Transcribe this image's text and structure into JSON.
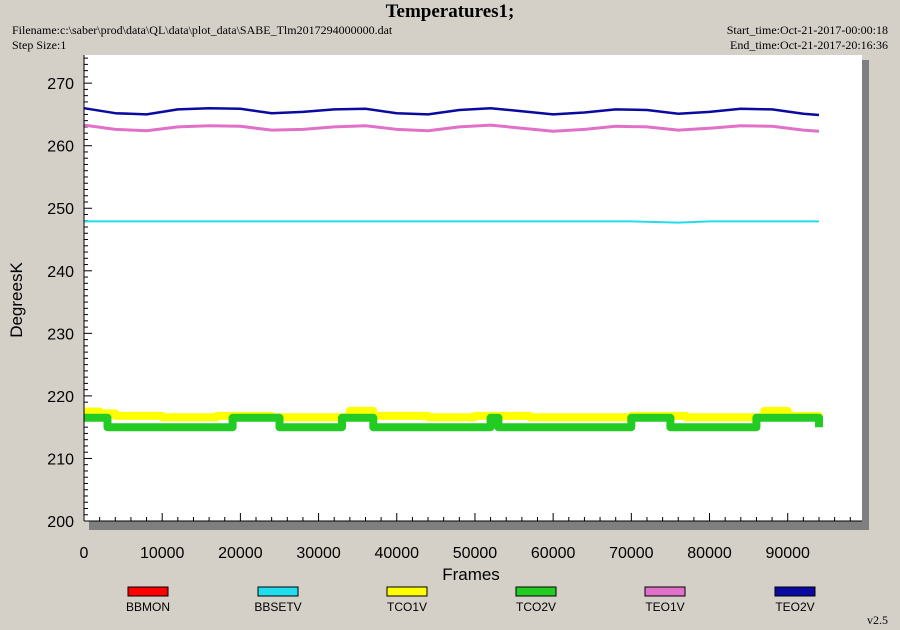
{
  "header": {
    "title": "Temperatures1;",
    "filename": "Filename:c:\\saber\\prod\\data\\QL\\data\\plot_data\\SABE_Tlm2017294000000.dat",
    "step_size": "Step Size:1",
    "start_time": "Start_time:Oct-21-2017-00:00:18",
    "end_time": "End_time:Oct-21-2017-20:16:36"
  },
  "version": "v2.5",
  "colors": {
    "background": "#d4d0c8",
    "plot_background": "#ffffff"
  },
  "chart_data": {
    "type": "line",
    "title": "Temperatures1;",
    "xlabel": "Frames",
    "ylabel": "DegreesK",
    "xlim": [
      0,
      100000
    ],
    "ylim": [
      200,
      275
    ],
    "x_ticks": [
      0,
      10000,
      20000,
      30000,
      40000,
      50000,
      60000,
      70000,
      80000,
      90000
    ],
    "y_ticks": [
      200,
      210,
      220,
      230,
      240,
      250,
      260,
      270
    ],
    "legend_position": "bottom",
    "series": [
      {
        "name": "BBMON",
        "color": "#ff0000",
        "x": [],
        "y": []
      },
      {
        "name": "BBSETV",
        "color": "#22ddee",
        "x": [
          0,
          10000,
          20000,
          30000,
          40000,
          50000,
          60000,
          70000,
          76000,
          80000,
          90000,
          94000
        ],
        "y": [
          247.9,
          247.9,
          247.9,
          247.9,
          247.9,
          247.9,
          247.9,
          247.9,
          247.7,
          247.9,
          247.9,
          247.9
        ]
      },
      {
        "name": "TCO1V",
        "color": "#ffff00",
        "x": [
          0,
          2000,
          4000,
          10000,
          17000,
          24000,
          30000,
          34000,
          37000,
          44000,
          50000,
          57000,
          64000,
          70000,
          77000,
          84000,
          87000,
          90000,
          94000
        ],
        "y": [
          217.5,
          217.2,
          216.8,
          216.6,
          216.8,
          216.6,
          216.6,
          217.6,
          216.8,
          216.6,
          216.8,
          216.6,
          216.6,
          216.8,
          216.6,
          216.6,
          217.6,
          216.8,
          216.6
        ]
      },
      {
        "name": "TCO2V",
        "color": "#22cc22",
        "x": [
          0,
          2500,
          3000,
          10000,
          15000,
          19000,
          20000,
          25000,
          30000,
          33000,
          37000,
          44000,
          48000,
          52000,
          53000,
          60000,
          66000,
          70000,
          75000,
          80000,
          84000,
          86000,
          90000,
          94000
        ],
        "y": [
          216.5,
          216.5,
          215.0,
          215.0,
          215.0,
          216.5,
          216.5,
          215.0,
          215.0,
          216.5,
          215.0,
          215.0,
          215.0,
          216.5,
          215.0,
          215.0,
          215.0,
          216.5,
          215.0,
          215.0,
          215.0,
          216.5,
          216.5,
          215.0
        ]
      },
      {
        "name": "TEO1V",
        "color": "#e070c8",
        "x": [
          0,
          4000,
          8000,
          12000,
          16000,
          20000,
          24000,
          28000,
          32000,
          36000,
          40000,
          44000,
          48000,
          52000,
          56000,
          60000,
          64000,
          68000,
          72000,
          76000,
          80000,
          84000,
          88000,
          92000,
          94000
        ],
        "y": [
          263.3,
          262.6,
          262.4,
          263.0,
          263.2,
          263.1,
          262.5,
          262.6,
          263.0,
          263.2,
          262.6,
          262.4,
          263.0,
          263.3,
          262.8,
          262.3,
          262.6,
          263.1,
          263.0,
          262.5,
          262.8,
          263.2,
          263.1,
          262.5,
          262.3
        ]
      },
      {
        "name": "TEO2V",
        "color": "#0a0aa0",
        "x": [
          0,
          4000,
          8000,
          12000,
          16000,
          20000,
          24000,
          28000,
          32000,
          36000,
          40000,
          44000,
          48000,
          52000,
          56000,
          60000,
          64000,
          68000,
          72000,
          76000,
          80000,
          84000,
          88000,
          92000,
          94000
        ],
        "y": [
          266.0,
          265.2,
          265.0,
          265.8,
          266.0,
          265.9,
          265.2,
          265.4,
          265.8,
          265.9,
          265.2,
          265.0,
          265.7,
          266.0,
          265.5,
          265.0,
          265.3,
          265.8,
          265.7,
          265.1,
          265.4,
          265.9,
          265.8,
          265.1,
          264.9
        ]
      }
    ]
  }
}
